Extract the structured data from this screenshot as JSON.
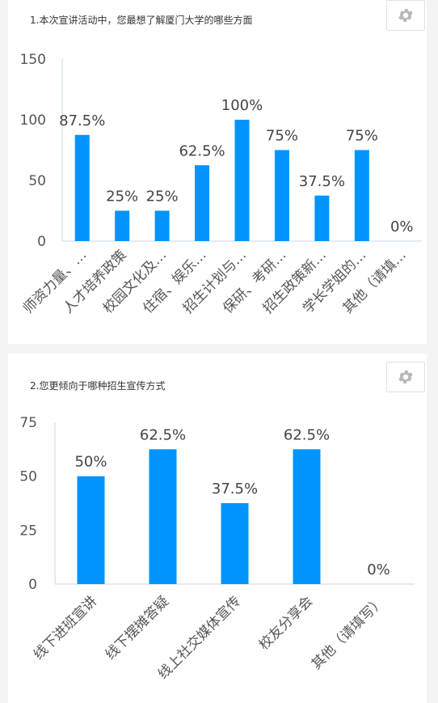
{
  "colors": {
    "bar": "#0094ff",
    "axis": "#c9d7e6",
    "text": "#555555",
    "gear": "#b8b8b8"
  },
  "icons": {
    "settings": "gear-icon"
  },
  "chart_data": [
    {
      "type": "bar",
      "title": "1.本次宣讲活动中，您最想了解厦门大学的哪些方面",
      "xlabel": "",
      "ylabel": "",
      "ylim": [
        0,
        150
      ],
      "yticks": [
        0,
        50,
        100,
        150
      ],
      "categories": [
        "师资力量、…",
        "人才培养政策",
        "校园文化及…",
        "住宿、娱乐…",
        "招生计划与…",
        "保研、考研…",
        "招生政策新…",
        "学长学姐的…",
        "其他（请填…"
      ],
      "values": [
        87.5,
        25,
        25,
        62.5,
        100,
        75,
        37.5,
        75,
        0
      ],
      "data_labels": [
        "87.5%",
        "25%",
        "25%",
        "62.5%",
        "100%",
        "75%",
        "37.5%",
        "75%",
        "0%"
      ],
      "grid": false
    },
    {
      "type": "bar",
      "title": "2.您更倾向于哪种招生宣传方式",
      "xlabel": "",
      "ylabel": "",
      "ylim": [
        0,
        75
      ],
      "yticks": [
        0,
        25,
        50,
        75
      ],
      "categories": [
        "线下进班宣讲",
        "线下摆摊答疑",
        "线上社交媒体宣传",
        "校友分享会",
        "其他（请填写）"
      ],
      "values": [
        50,
        62.5,
        37.5,
        62.5,
        0
      ],
      "data_labels": [
        "50%",
        "62.5%",
        "37.5%",
        "62.5%",
        "0%"
      ],
      "grid": false
    }
  ]
}
